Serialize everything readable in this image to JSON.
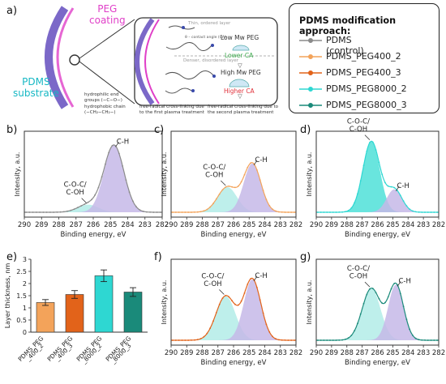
{
  "panel_labels": [
    "a)",
    "b)",
    "c)",
    "d)",
    "e)",
    "f)",
    "g)"
  ],
  "schematic": {
    "peg_coating": "PEG\ncoating",
    "pdms_substrate": "PDMS\nsubstrate",
    "thin_layer": "Thin, ordered layer",
    "dense_layer": "Denser, disordered layer",
    "contact_angle_note": "θ – contact angle (CA)",
    "low_mw": "Low Mw PEG",
    "lower_ca": "Lower CA",
    "high_mw": "High Mw PEG",
    "higher_ca": "Higher CA",
    "key_hydrophilic": "hydrophilic end\ngroups (−C−O−)",
    "key_hydrophobic": "hydrophobic chain\n(−CH₂−CH₂−)",
    "key_first_plasma": "free-radical cross-linking due\nto the first plasma treatment",
    "key_second_plasma": "free-radical cross-linking due to\nthe second plasma treatment",
    "colors": {
      "peg": "#e040c8",
      "pdms": "#17b8c4",
      "lower_ca": "#3aa84a",
      "higher_ca": "#e0303a"
    }
  },
  "legend": {
    "title": "PDMS modification approach:",
    "items": [
      {
        "label": "PDMS (control)",
        "color": "#8a8a8a"
      },
      {
        "label": "PDMS_PEG400_2",
        "color": "#f3a35a"
      },
      {
        "label": "PDMS_PEG400_3",
        "color": "#e2631a"
      },
      {
        "label": "PDMS_PEG8000_2",
        "color": "#2ed7d2"
      },
      {
        "label": "PDMS_PEG8000_3",
        "color": "#1a8a7a"
      }
    ]
  },
  "chart_data": [
    {
      "id": "b",
      "type": "line",
      "series_name": "PDMS (control)",
      "line_color": "#8a8a8a",
      "xlabel": "Binding energy, eV",
      "ylabel": "Intensity, a.u.",
      "xlim": [
        290,
        282
      ],
      "xticks": [
        290,
        289,
        288,
        287,
        286,
        285,
        284,
        283,
        282
      ],
      "peaks": [
        {
          "label": "C-O-C/\nC-OH",
          "center": 286.3,
          "height": 0.1,
          "width": 0.6,
          "fill": "#b3ece8"
        },
        {
          "label": "C-H",
          "center": 284.8,
          "height": 0.88,
          "width": 0.58,
          "fill": "#c5b8e8"
        }
      ]
    },
    {
      "id": "c",
      "type": "line",
      "series_name": "PDMS_PEG400_2",
      "line_color": "#f3a35a",
      "xlabel": "Binding energy, eV",
      "ylabel": "Intensity, a.u.",
      "xlim": [
        290,
        282
      ],
      "xticks": [
        290,
        289,
        288,
        287,
        286,
        285,
        284,
        283,
        282
      ],
      "peaks": [
        {
          "label": "C-O-C/\nC-OH",
          "center": 286.4,
          "height": 0.33,
          "width": 0.62,
          "fill": "#b3ece8"
        },
        {
          "label": "C-H",
          "center": 284.8,
          "height": 0.64,
          "width": 0.55,
          "fill": "#c5b8e8"
        }
      ]
    },
    {
      "id": "d",
      "type": "line",
      "series_name": "PDMS_PEG8000_2",
      "line_color": "#2ed7d2",
      "xlabel": "Binding energy, eV",
      "ylabel": "Intensity, a.u.",
      "xlim": [
        290,
        282
      ],
      "xticks": [
        290,
        289,
        288,
        287,
        286,
        285,
        284,
        283,
        282
      ],
      "peaks": [
        {
          "label": "C-O-C/\nC-OH",
          "center": 286.4,
          "height": 0.93,
          "width": 0.55,
          "fill": "#4fe1d8"
        },
        {
          "label": "C-H",
          "center": 284.9,
          "height": 0.3,
          "width": 0.5,
          "fill": "#c5b8e8"
        }
      ]
    },
    {
      "id": "e",
      "type": "bar",
      "categories": [
        "PDMS_PEG\n_400_2",
        "PDMS_PEG\n_400_3",
        "PDMS_PEG\n_8000_2",
        "PDMS_PEG\n_8000_3"
      ],
      "values": [
        1.22,
        1.55,
        2.32,
        1.65
      ],
      "errors": [
        0.12,
        0.16,
        0.24,
        0.18
      ],
      "colors": [
        "#f3a35a",
        "#e2631a",
        "#2ed7d2",
        "#1a8a7a"
      ],
      "ylabel": "Layer thickness, nm",
      "ylim": [
        0,
        3
      ],
      "yticks": [
        0,
        0.5,
        1,
        1.5,
        2,
        2.5,
        3
      ]
    },
    {
      "id": "f",
      "type": "line",
      "series_name": "PDMS_PEG400_3",
      "line_color": "#e2631a",
      "xlabel": "Binding energy, eV",
      "ylabel": "Intensity, a.u.",
      "xlim": [
        290,
        282
      ],
      "xticks": [
        290,
        289,
        288,
        287,
        286,
        285,
        284,
        283,
        282
      ],
      "peaks": [
        {
          "label": "C-O-C/\nC-OH",
          "center": 286.5,
          "height": 0.58,
          "width": 0.62,
          "fill": "#b3ece8"
        },
        {
          "label": "C-H",
          "center": 284.8,
          "height": 0.8,
          "width": 0.55,
          "fill": "#c5b8e8"
        }
      ]
    },
    {
      "id": "g",
      "type": "line",
      "series_name": "PDMS_PEG8000_3",
      "line_color": "#1a8a7a",
      "xlabel": "Binding energy, eV",
      "ylabel": "Intensity, a.u.",
      "xlim": [
        290,
        282
      ],
      "xticks": [
        290,
        289,
        288,
        287,
        286,
        285,
        284,
        283,
        282
      ],
      "peaks": [
        {
          "label": "C-O-C/\nC-OH",
          "center": 286.4,
          "height": 0.68,
          "width": 0.6,
          "fill": "#b3ece8"
        },
        {
          "label": "C-H",
          "center": 284.8,
          "height": 0.73,
          "width": 0.5,
          "fill": "#c5b8e8"
        }
      ]
    }
  ]
}
